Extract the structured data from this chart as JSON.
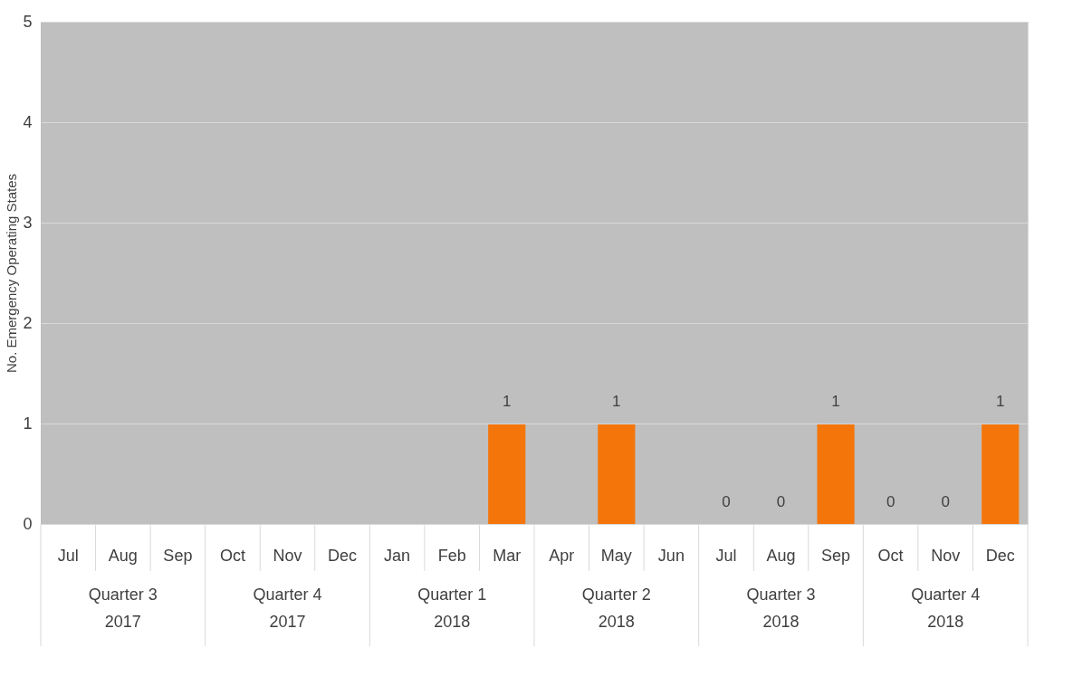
{
  "chart_data": {
    "type": "bar",
    "ylabel": "No. Emergency Operating States",
    "categories": [
      "Jul",
      "Aug",
      "Sep",
      "Oct",
      "Nov",
      "Dec",
      "Jan",
      "Feb",
      "Mar",
      "Apr",
      "May",
      "Jun",
      "Jul",
      "Aug",
      "Sep",
      "Oct",
      "Nov",
      "Dec"
    ],
    "values": [
      null,
      null,
      null,
      null,
      null,
      null,
      null,
      null,
      1,
      null,
      1,
      null,
      0,
      0,
      1,
      0,
      0,
      1
    ],
    "color": "#f4760b",
    "ylim": [
      0,
      5
    ],
    "yticks": [
      0,
      1,
      2,
      3,
      4,
      5
    ],
    "grid": "y",
    "data_labels": true,
    "annotations": [
      "Quarter 3\n2017",
      "Quarter 4\n2017",
      "Quarter 1\n2018",
      "Quarter 2\n2018",
      "Quarter 3\n2018",
      "Quarter 4\n2018"
    ]
  }
}
